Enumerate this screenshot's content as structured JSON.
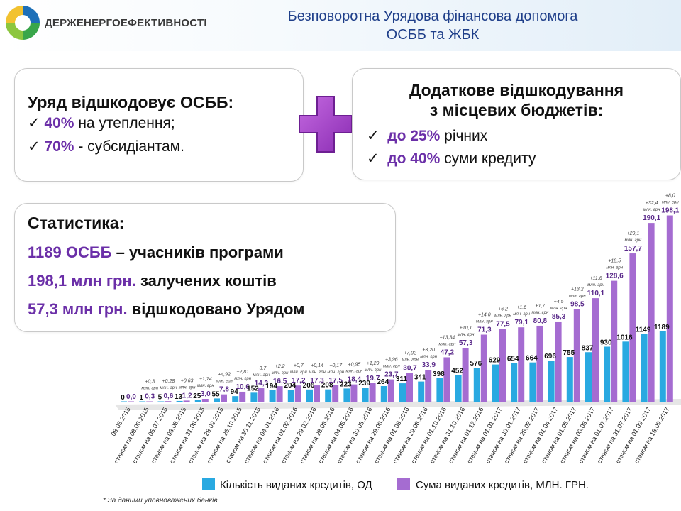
{
  "header": {
    "org_name": "ДЕРЖЕНЕРГОЕФЕКТИВНОСТІ",
    "title_line1": "Безповоротна Урядова фінансова допомога",
    "title_line2": "ОСББ та ЖБК"
  },
  "box1": {
    "heading": "Уряд відшкодовує ОСББ:",
    "items": [
      {
        "check": "✓",
        "percent": "40%",
        "text": " на утеплення;"
      },
      {
        "check": "✓",
        "percent": "70%",
        "text": " - субсидіантам."
      }
    ]
  },
  "box2": {
    "heading_line1": "Додаткове відшкодування",
    "heading_line2": "з місцевих бюджетів:",
    "items": [
      {
        "check": "✓",
        "percent": "до 25%",
        "text": " річних"
      },
      {
        "check": "✓",
        "percent": "до 40%",
        "text": " суми кредиту"
      }
    ]
  },
  "stats": {
    "heading": "Статистика:",
    "lines": [
      {
        "value": "1189 ОСББ",
        "text": " – учасників програми"
      },
      {
        "value": "198,1 млн грн.",
        "text": " залучених коштів"
      },
      {
        "value": "57,3 млн грн.",
        "text": " відшкодовано Урядом"
      }
    ]
  },
  "colors": {
    "count_series": "#29a9e1",
    "sum_series": "#a56cd1",
    "accent": "#6b2fa8",
    "title": "#1f3f8a"
  },
  "chart_data": {
    "type": "bar",
    "categories": [
      "08.05.2015",
      "станом на 08.06.2015",
      "станом на 06.07.2015",
      "станом на 03.08.2015",
      "станом на 31.08.2015",
      "станом на 28.09.2015",
      "станом на 26.10.2015",
      "станом на 30.11.2015",
      "станом на 04.01.2016",
      "станом на 01.02.2016",
      "станом на 29.02.2016",
      "станом на 28.03.2016",
      "станом на 04.05.2016",
      "станом на 30.05.2016",
      "станом на 29.06.2016",
      "станом на 01.08.2016",
      "станом на 29.08.2016",
      "станом на 01.10.2016",
      "станом на 31.10.2016",
      "станом на 01.12.2016",
      "станом на 01.01.2017",
      "станом на 30.01.2017",
      "станом на 28.02.2017",
      "станом на 01.04.2017",
      "станом на 01.05.2017",
      "станом на 03.06.2017",
      "станом на 01.07.2017",
      "станом на 31.07.2017",
      "станом на 01.09.2017",
      "станом на 18.09.2017"
    ],
    "series": [
      {
        "name": "Кількість виданих кредитів, ОД",
        "values": [
          0,
          1,
          5,
          13,
          25,
          55,
          94,
          152,
          194,
          204,
          206,
          208,
          223,
          239,
          264,
          311,
          341,
          398,
          452,
          576,
          629,
          654,
          664,
          696,
          755,
          837,
          930,
          1016,
          1149,
          1189
        ],
        "labels": [
          "0",
          "1",
          "5",
          "13",
          "25",
          "55",
          "94",
          "152",
          "194",
          "204",
          "206",
          "208",
          "223",
          "239",
          "264",
          "311",
          "341",
          "398",
          "452",
          "576",
          "629",
          "654",
          "664",
          "696",
          "755",
          "837",
          "930",
          "1016",
          "1149",
          "1189"
        ]
      },
      {
        "name": "Сума виданих кредитів, МЛН. ГРН.",
        "values": [
          0,
          0.3,
          0.6,
          1.2,
          3.0,
          7.8,
          10.6,
          14.3,
          16.5,
          17.2,
          17.3,
          17.5,
          18.4,
          19.7,
          23.7,
          30.7,
          33.9,
          47.2,
          57.3,
          71.3,
          77.5,
          79.1,
          80.8,
          85.3,
          98.5,
          110.1,
          128.6,
          157.7,
          190.1,
          198.1
        ],
        "labels": [
          "0,0",
          "0,3",
          "0,6",
          "1,2",
          "3,0",
          "7,8",
          "10,6",
          "14,3",
          "16,5",
          "17,2",
          "17,3",
          "17,5",
          "18,4",
          "19,7",
          "23,7",
          "30,7",
          "33,9",
          "47,2",
          "57,3",
          "71,3",
          "77,5",
          "79,1",
          "80,8",
          "85,3",
          "98,5",
          "110,1",
          "128,6",
          "157,7",
          "190,1",
          "198,1"
        ]
      }
    ],
    "increments": [
      "",
      "+0,3",
      "+0,28",
      "+0,63",
      "+1,74",
      "+4,92",
      "+2,81",
      "+3,7",
      "+2,2",
      "+0,7",
      "+0,14",
      "+0,17",
      "+0,95",
      "+1,29",
      "+3,96",
      "+7,02",
      "+3,20",
      "+13,34",
      "+10,1",
      "+14,0",
      "+6,2",
      "+1,6",
      "+1,7",
      "+4,5",
      "+13,2",
      "+11,6",
      "+18,5",
      "+29,1",
      "+32,4",
      "+8,0"
    ],
    "increment_unit": "млн. грн",
    "legend_position": "bottom",
    "grid": false
  },
  "footnote": "* За даними уповноважених банків"
}
